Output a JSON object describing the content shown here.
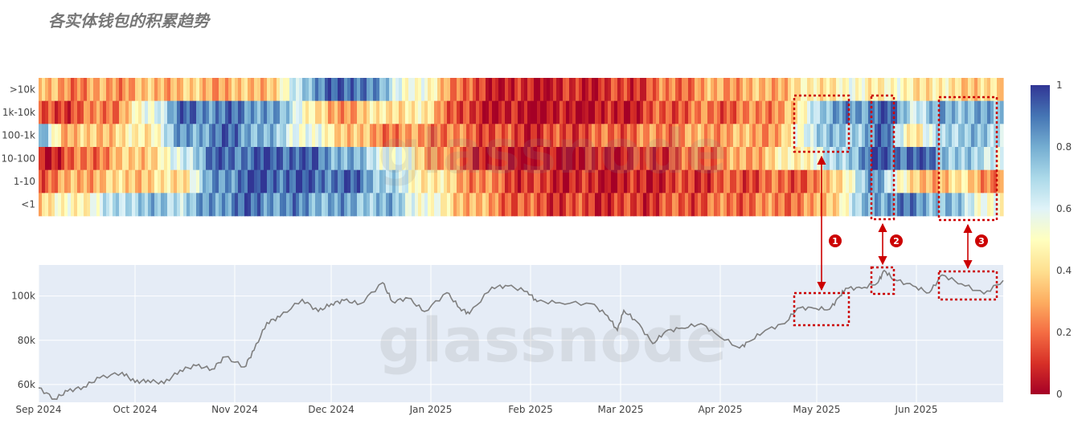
{
  "title": "各实体钱包的积累趋势",
  "watermark": "glassnode",
  "chart_data": [
    {
      "type": "heatmap",
      "rows": [
        ">10k",
        "1k-10k",
        "100-1k",
        "10-100",
        "1-10",
        "<1"
      ],
      "date_range": [
        "2024-09-01",
        "2025-06-28"
      ],
      "colorbar": {
        "min": 0,
        "max": 1,
        "ticks": [
          "0",
          "0.2",
          "0.4",
          "0.6",
          "0.8",
          "1"
        ]
      },
      "colors": {
        "low": "#a50026",
        "mid": "#ffffbf",
        "high": "#313695"
      },
      "segments": [
        [
          [
            "2024-09-01",
            0.3
          ],
          [
            "2024-09-15",
            0.25
          ],
          [
            "2024-10-01",
            0.3
          ],
          [
            "2024-10-15",
            0.35
          ],
          [
            "2024-11-01",
            0.3
          ],
          [
            "2024-11-15",
            0.4
          ],
          [
            "2024-11-25",
            0.85
          ],
          [
            "2024-12-10",
            0.95
          ],
          [
            "2024-12-20",
            0.65
          ],
          [
            "2025-01-01",
            0.45
          ],
          [
            "2025-01-15",
            0.1
          ],
          [
            "2025-02-01",
            0.05
          ],
          [
            "2025-03-01",
            0.1
          ],
          [
            "2025-03-15",
            0.2
          ],
          [
            "2025-04-01",
            0.3
          ],
          [
            "2025-04-15",
            0.3
          ],
          [
            "2025-05-01",
            0.45
          ],
          [
            "2025-05-15",
            0.5
          ],
          [
            "2025-06-01",
            0.45
          ],
          [
            "2025-06-28",
            0.35
          ]
        ],
        [
          [
            "2024-09-01",
            0.1
          ],
          [
            "2024-09-25",
            0.25
          ],
          [
            "2024-10-07",
            0.6
          ],
          [
            "2024-10-15",
            0.9
          ],
          [
            "2024-11-10",
            0.85
          ],
          [
            "2024-11-20",
            0.65
          ],
          [
            "2024-12-01",
            0.25
          ],
          [
            "2024-12-20",
            0.45
          ],
          [
            "2025-01-01",
            0.4
          ],
          [
            "2025-01-10",
            0.1
          ],
          [
            "2025-02-01",
            0.02
          ],
          [
            "2025-03-01",
            0.05
          ],
          [
            "2025-03-20",
            0.2
          ],
          [
            "2025-04-10",
            0.2
          ],
          [
            "2025-04-25",
            0.35
          ],
          [
            "2025-05-01",
            0.75
          ],
          [
            "2025-05-15",
            0.85
          ],
          [
            "2025-05-22",
            0.95
          ],
          [
            "2025-06-01",
            0.65
          ],
          [
            "2025-06-10",
            0.8
          ],
          [
            "2025-06-28",
            0.75
          ]
        ],
        [
          [
            "2024-09-01",
            0.85
          ],
          [
            "2024-09-10",
            0.3
          ],
          [
            "2024-10-05",
            0.45
          ],
          [
            "2024-10-15",
            0.8
          ],
          [
            "2024-11-01",
            0.9
          ],
          [
            "2024-12-01",
            0.45
          ],
          [
            "2024-12-15",
            0.25
          ],
          [
            "2025-01-01",
            0.25
          ],
          [
            "2025-02-01",
            0.1
          ],
          [
            "2025-03-01",
            0.2
          ],
          [
            "2025-04-01",
            0.3
          ],
          [
            "2025-04-20",
            0.3
          ],
          [
            "2025-05-01",
            0.75
          ],
          [
            "2025-05-10",
            0.7
          ],
          [
            "2025-05-22",
            0.9
          ],
          [
            "2025-06-01",
            0.4
          ],
          [
            "2025-06-10",
            0.75
          ],
          [
            "2025-06-28",
            0.7
          ]
        ],
        [
          [
            "2024-09-01",
            0.05
          ],
          [
            "2024-09-20",
            0.25
          ],
          [
            "2024-10-10",
            0.45
          ],
          [
            "2024-10-25",
            0.9
          ],
          [
            "2024-11-20",
            0.95
          ],
          [
            "2024-12-05",
            0.8
          ],
          [
            "2024-12-25",
            0.5
          ],
          [
            "2025-01-01",
            0.3
          ],
          [
            "2025-01-20",
            0.05
          ],
          [
            "2025-02-10",
            0.02
          ],
          [
            "2025-03-10",
            0.1
          ],
          [
            "2025-04-10",
            0.3
          ],
          [
            "2025-05-01",
            0.55
          ],
          [
            "2025-05-20",
            0.95
          ],
          [
            "2025-06-05",
            0.9
          ],
          [
            "2025-06-15",
            0.7
          ],
          [
            "2025-06-28",
            0.65
          ]
        ],
        [
          [
            "2024-09-01",
            0.2
          ],
          [
            "2024-09-20",
            0.35
          ],
          [
            "2024-10-15",
            0.4
          ],
          [
            "2024-10-25",
            0.8
          ],
          [
            "2024-11-05",
            0.95
          ],
          [
            "2024-12-10",
            0.9
          ],
          [
            "2024-12-25",
            0.55
          ],
          [
            "2025-01-01",
            0.45
          ],
          [
            "2025-01-15",
            0.25
          ],
          [
            "2025-02-01",
            0.1
          ],
          [
            "2025-03-01",
            0.05
          ],
          [
            "2025-04-01",
            0.15
          ],
          [
            "2025-05-01",
            0.2
          ],
          [
            "2025-05-20",
            0.85
          ],
          [
            "2025-06-01",
            0.3
          ],
          [
            "2025-06-15",
            0.4
          ],
          [
            "2025-06-28",
            0.2
          ]
        ],
        [
          [
            "2024-09-01",
            0.4
          ],
          [
            "2024-09-15",
            0.5
          ],
          [
            "2024-10-01",
            0.75
          ],
          [
            "2024-10-15",
            0.7
          ],
          [
            "2024-11-01",
            0.9
          ],
          [
            "2024-12-01",
            0.8
          ],
          [
            "2024-12-20",
            0.75
          ],
          [
            "2025-01-01",
            0.5
          ],
          [
            "2025-01-15",
            0.3
          ],
          [
            "2025-02-01",
            0.15
          ],
          [
            "2025-03-01",
            0.1
          ],
          [
            "2025-04-01",
            0.2
          ],
          [
            "2025-05-01",
            0.25
          ],
          [
            "2025-05-20",
            0.85
          ],
          [
            "2025-06-01",
            0.85
          ],
          [
            "2025-06-15",
            0.7
          ],
          [
            "2025-06-28",
            0.45
          ]
        ]
      ]
    },
    {
      "type": "line",
      "x_ticks": [
        "Sep 2024",
        "Oct 2024",
        "Nov 2024",
        "Dec 2024",
        "Jan 2025",
        "Feb 2025",
        "Mar 2025",
        "Apr 2025",
        "May 2025",
        "Jun 2025"
      ],
      "y_ticks": [
        "60k",
        "80k",
        "100k"
      ],
      "ylim": [
        52000,
        114000
      ],
      "grid": true,
      "series": [
        {
          "color": "#7f7f7f",
          "points": [
            [
              "2024-09-01",
              58500
            ],
            [
              "2024-09-06",
              53500
            ],
            [
              "2024-09-10",
              57000
            ],
            [
              "2024-09-15",
              59000
            ],
            [
              "2024-09-20",
              63000
            ],
            [
              "2024-09-27",
              65500
            ],
            [
              "2024-10-01",
              61000
            ],
            [
              "2024-10-05",
              62000
            ],
            [
              "2024-10-10",
              60500
            ],
            [
              "2024-10-15",
              66500
            ],
            [
              "2024-10-20",
              68500
            ],
            [
              "2024-10-25",
              67000
            ],
            [
              "2024-10-29",
              72500
            ],
            [
              "2024-11-04",
              68000
            ],
            [
              "2024-11-07",
              75500
            ],
            [
              "2024-11-11",
              88000
            ],
            [
              "2024-11-15",
              90500
            ],
            [
              "2024-11-22",
              98500
            ],
            [
              "2024-11-27",
              93000
            ],
            [
              "2024-12-01",
              96500
            ],
            [
              "2024-12-05",
              98000
            ],
            [
              "2024-12-10",
              96500
            ],
            [
              "2024-12-17",
              106000
            ],
            [
              "2024-12-20",
              97500
            ],
            [
              "2024-12-25",
              99000
            ],
            [
              "2024-12-30",
              93000
            ],
            [
              "2025-01-06",
              101500
            ],
            [
              "2025-01-10",
              94500
            ],
            [
              "2025-01-13",
              92000
            ],
            [
              "2025-01-20",
              104000
            ],
            [
              "2025-01-25",
              104500
            ],
            [
              "2025-01-31",
              102000
            ],
            [
              "2025-02-03",
              97500
            ],
            [
              "2025-02-10",
              97000
            ],
            [
              "2025-02-20",
              96500
            ],
            [
              "2025-02-25",
              91000
            ],
            [
              "2025-02-28",
              84500
            ],
            [
              "2025-03-02",
              93500
            ],
            [
              "2025-03-06",
              88500
            ],
            [
              "2025-03-11",
              78500
            ],
            [
              "2025-03-15",
              84000
            ],
            [
              "2025-03-20",
              85500
            ],
            [
              "2025-03-26",
              87500
            ],
            [
              "2025-03-31",
              82500
            ],
            [
              "2025-04-07",
              76500
            ],
            [
              "2025-04-10",
              79500
            ],
            [
              "2025-04-15",
              84500
            ],
            [
              "2025-04-21",
              87500
            ],
            [
              "2025-04-25",
              94500
            ],
            [
              "2025-04-30",
              94500
            ],
            [
              "2025-05-05",
              94000
            ],
            [
              "2025-05-08",
              99500
            ],
            [
              "2025-05-10",
              103500
            ],
            [
              "2025-05-15",
              103500
            ],
            [
              "2025-05-20",
              106000
            ],
            [
              "2025-05-22",
              111500
            ],
            [
              "2025-05-25",
              107500
            ],
            [
              "2025-05-31",
              104500
            ],
            [
              "2025-06-05",
              101500
            ],
            [
              "2025-06-09",
              109500
            ],
            [
              "2025-06-15",
              105500
            ],
            [
              "2025-06-22",
              101000
            ],
            [
              "2025-06-28",
              107000
            ]
          ]
        }
      ]
    }
  ],
  "annotations": {
    "badges": [
      "1",
      "2",
      "3"
    ],
    "highlight_ranges": [
      [
        "2025-04-24",
        "2025-05-11"
      ],
      [
        "2025-05-18",
        "2025-05-25"
      ],
      [
        "2025-06-08",
        "2025-06-26"
      ]
    ]
  }
}
